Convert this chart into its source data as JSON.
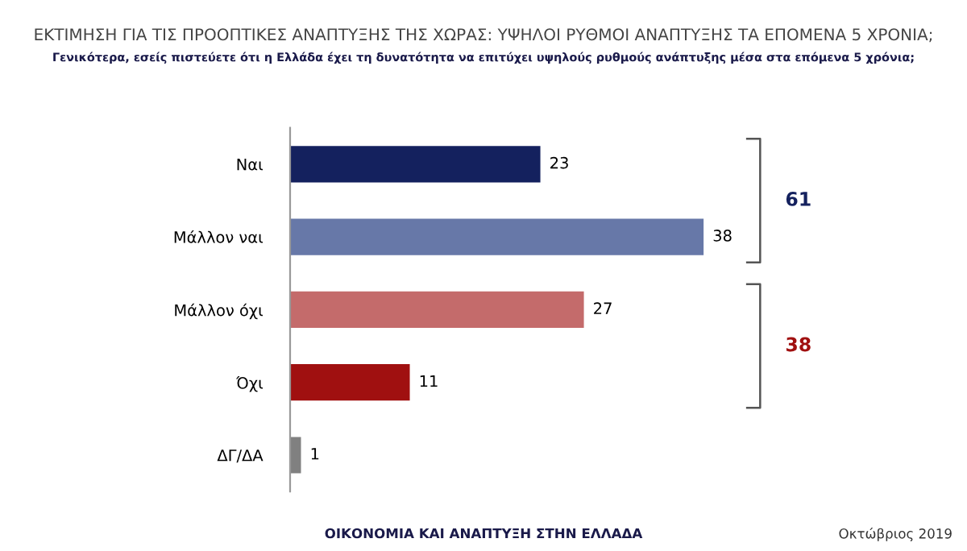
{
  "chart_data": {
    "type": "bar",
    "orientation": "horizontal",
    "title": "ΕΚΤΙΜΗΣΗ ΓΙΑ ΤΙΣ ΠΡΟΟΠΤΙΚΕΣ ΑΝΑΠΤΥΞΗΣ ΤΗΣ ΧΩΡΑΣ: ΥΨΗΛΟΙ ΡΥΘΜΟΙ ΑΝΑΠΤΥΞΗΣ ΤΑ ΕΠΟΜΕΝΑ 5 ΧΡΟΝΙΑ;",
    "subtitle": "Γενικότερα, εσείς πιστεύετε ότι η Ελλάδα έχει τη δυνατότητα να επιτύχει υψηλούς ρυθμούς ανάπτυξης μέσα στα επόμενα 5 χρόνια;",
    "categories": [
      "Ναι",
      "Μάλλον ναι",
      "Μάλλον όχι",
      "Όχι",
      "ΔΓ/ΔΑ"
    ],
    "values": [
      23,
      38,
      27,
      11,
      1
    ],
    "colors": [
      "#14215e",
      "#6778a8",
      "#c46b6b",
      "#a01010",
      "#808080"
    ],
    "data_labels": true,
    "annotations": [
      "61",
      "38",
      "ΟΙΚΟΝΟΜΙΑ ΚΑΙ ΑΝΑΠΤΥΞΗ ΣΤΗΝ ΕΛΛΑΔΑ",
      "Οκτώβριος 2019"
    ]
  }
}
